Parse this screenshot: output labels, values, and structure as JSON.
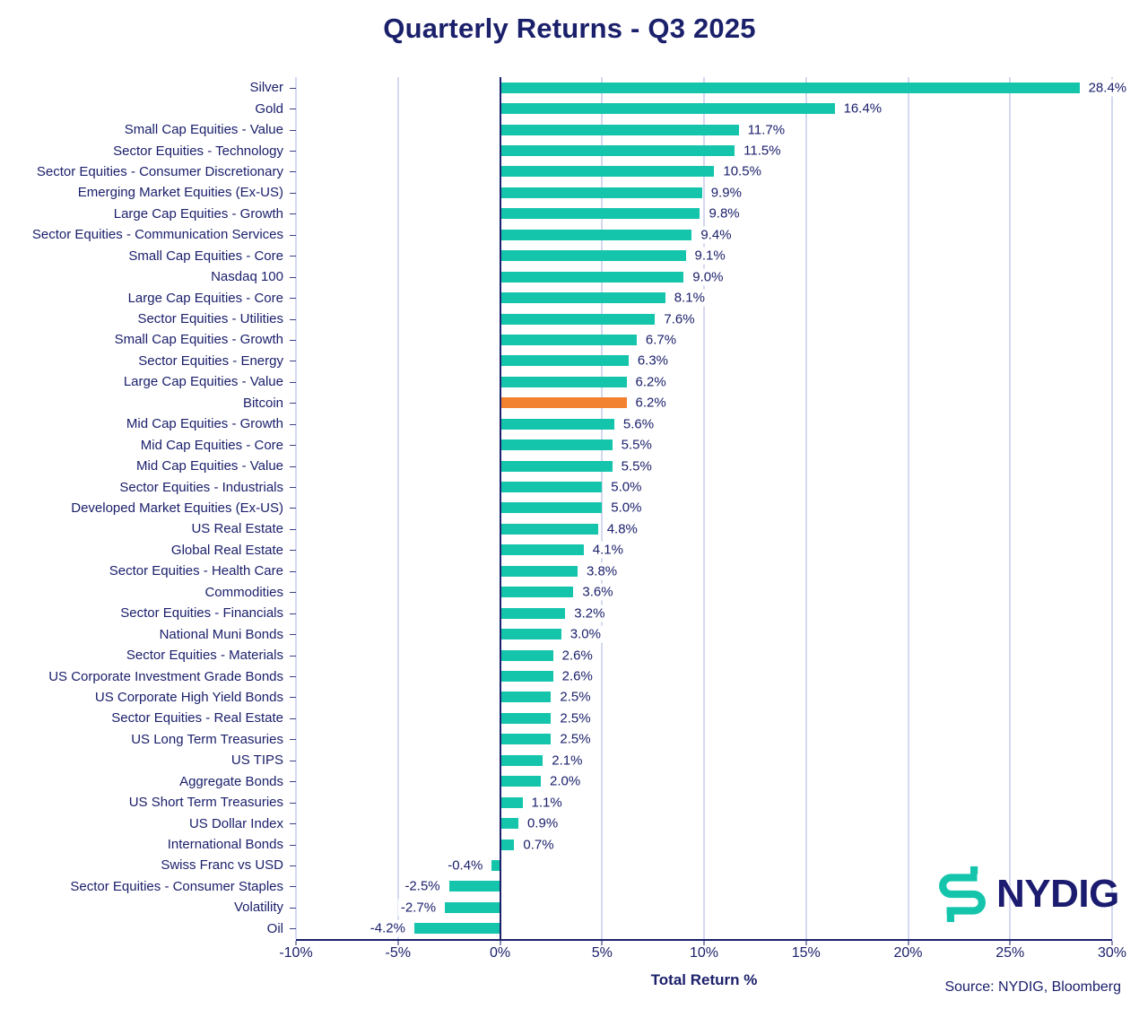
{
  "title": "Quarterly Returns - Q3 2025",
  "chart_data": {
    "type": "bar",
    "orientation": "horizontal",
    "title": "Quarterly Returns - Q3 2025",
    "xlabel": "Total Return %",
    "ylabel": "",
    "xlim": [
      -10,
      30
    ],
    "grid": "vertical",
    "x_ticks": [
      -10,
      -5,
      0,
      5,
      10,
      15,
      20,
      25,
      30
    ],
    "x_tick_labels": [
      "-10%",
      "-5%",
      "0%",
      "5%",
      "10%",
      "15%",
      "20%",
      "25%",
      "30%"
    ],
    "highlight_category": "Bitcoin",
    "categories": [
      "Silver",
      "Gold",
      "Small Cap Equities - Value",
      "Sector Equities - Technology",
      "Sector Equities - Consumer Discretionary",
      "Emerging Market Equities (Ex-US)",
      "Large Cap Equities - Growth",
      "Sector Equities - Communication Services",
      "Small Cap Equities - Core",
      "Nasdaq 100",
      "Large Cap Equities - Core",
      "Sector Equities - Utilities",
      "Small Cap Equities - Growth",
      "Sector Equities - Energy",
      "Large Cap Equities - Value",
      "Bitcoin",
      "Mid Cap Equities - Growth",
      "Mid Cap Equities - Core",
      "Mid Cap Equities - Value",
      "Sector Equities - Industrials",
      "Developed Market Equities (Ex-US)",
      "US Real Estate",
      "Global Real Estate",
      "Sector Equities - Health Care",
      "Commodities",
      "Sector Equities - Financials",
      "National Muni Bonds",
      "Sector Equities - Materials",
      "US Corporate Investment Grade Bonds",
      "US Corporate High Yield Bonds",
      "Sector Equities - Real Estate",
      "US Long Term Treasuries",
      "US TIPS",
      "Aggregate Bonds",
      "US Short Term Treasuries",
      "US Dollar Index",
      "International Bonds",
      "Swiss Franc vs USD",
      "Sector Equities - Consumer Staples",
      "Volatility",
      "Oil"
    ],
    "values": [
      28.4,
      16.4,
      11.7,
      11.5,
      10.5,
      9.9,
      9.8,
      9.4,
      9.1,
      9.0,
      8.1,
      7.6,
      6.7,
      6.3,
      6.2,
      6.2,
      5.6,
      5.5,
      5.5,
      5.0,
      5.0,
      4.8,
      4.1,
      3.8,
      3.6,
      3.2,
      3.0,
      2.6,
      2.6,
      2.5,
      2.5,
      2.5,
      2.1,
      2.0,
      1.1,
      0.9,
      0.7,
      -0.4,
      -2.5,
      -2.7,
      -4.2
    ]
  },
  "footer": {
    "source": "Source: NYDIG, Bloomberg"
  },
  "branding": {
    "logo_text": "NYDIG"
  },
  "colors": {
    "bar": "#14C5AC",
    "highlight": "#F2822F",
    "text_navy": "#1B206B",
    "logo_navy": "#1B1B6F",
    "gridline": "#A8B2E0",
    "background": "#FFFFFF"
  }
}
